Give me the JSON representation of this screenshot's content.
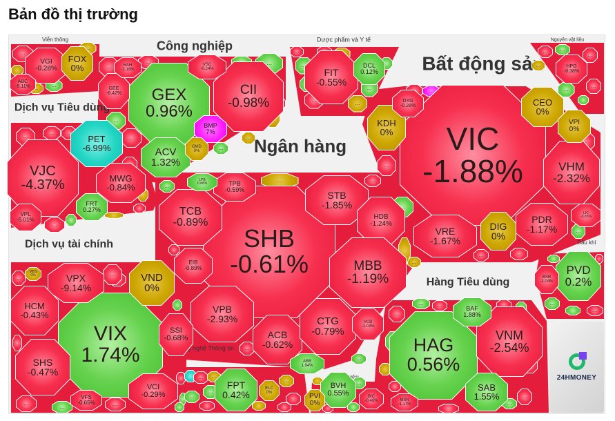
{
  "title": "Bản đồ thị trường",
  "more_label": "...",
  "logo_text": "24HMONEY",
  "colors": {
    "down": "#e6163a",
    "up": "#45bd2f",
    "flat": "#cda600",
    "ceiling": "#ff22ff",
    "floor": "#22d5c4"
  },
  "sectors": [
    {
      "name": "Viễn thông",
      "tiles": [
        {
          "ticker": "VGI",
          "change": "-0.28%",
          "color": "red"
        },
        {
          "ticker": "FOX",
          "change": "0%",
          "color": "yellow"
        },
        {
          "ticker": "ABC",
          "change": "-5.11%",
          "color": "red"
        }
      ]
    },
    {
      "name": "Công nghiệp",
      "tiles": [
        {
          "ticker": "GEX",
          "change": "0.96%",
          "color": "green"
        },
        {
          "ticker": "CII",
          "change": "-0.98%",
          "color": "red"
        },
        {
          "ticker": "ACV",
          "change": "1.32%",
          "color": "green"
        },
        {
          "ticker": "BMP",
          "change": "7%",
          "color": "magenta"
        },
        {
          "ticker": "GMD",
          "change": "0%",
          "color": "yellow"
        },
        {
          "ticker": "GEE",
          "change": "-6.42%",
          "color": "red"
        },
        {
          "ticker": "HAH",
          "change": "-1.18%",
          "color": "red"
        },
        {
          "ticker": "VSC",
          "change": "-0.24%",
          "color": "red"
        }
      ]
    },
    {
      "name": "Dược phẩm và Y tế",
      "tiles": [
        {
          "ticker": "FIT",
          "change": "-0.55%",
          "color": "red"
        },
        {
          "ticker": "DCL",
          "change": "0.12%",
          "color": "green"
        }
      ]
    },
    {
      "name": "Bất động sản",
      "tiles": [
        {
          "ticker": "VIC",
          "change": "-1.88%",
          "color": "red"
        },
        {
          "ticker": "VHM",
          "change": "-2.32%",
          "color": "red"
        },
        {
          "ticker": "CEO",
          "change": "0%",
          "color": "yellow"
        },
        {
          "ticker": "VPI",
          "change": "0%",
          "color": "yellow"
        },
        {
          "ticker": "KDH",
          "change": "0%",
          "color": "yellow"
        },
        {
          "ticker": "DXG",
          "change": "-0.28%",
          "color": "red"
        },
        {
          "ticker": "VRE",
          "change": "-1.67%",
          "color": "red"
        },
        {
          "ticker": "DIG",
          "change": "0%",
          "color": "yellow"
        },
        {
          "ticker": "PDR",
          "change": "-1.17%",
          "color": "red"
        },
        {
          "ticker": "LIC",
          "change": "-3.85%",
          "color": "red"
        }
      ]
    },
    {
      "name": "Nguyên vật liệu",
      "tiles": [
        {
          "ticker": "HPG",
          "change": "-0.38%",
          "color": "red"
        }
      ]
    },
    {
      "name": "Dịch vụ Tiêu dùng",
      "tiles": [
        {
          "ticker": "VJC",
          "change": "-4.37%",
          "color": "red"
        },
        {
          "ticker": "PET",
          "change": "-6.99%",
          "color": "cyan"
        },
        {
          "ticker": "MWG",
          "change": "-0.84%",
          "color": "red"
        },
        {
          "ticker": "FRT",
          "change": "0.27%",
          "color": "green"
        },
        {
          "ticker": "VPL",
          "change": "-5.01%",
          "color": "red"
        }
      ]
    },
    {
      "name": "Ngân hàng",
      "tiles": [
        {
          "ticker": "SHB",
          "change": "-0.61%",
          "color": "red"
        },
        {
          "ticker": "TCB",
          "change": "-0.89%",
          "color": "red"
        },
        {
          "ticker": "TPB",
          "change": "-0.59%",
          "color": "red"
        },
        {
          "ticker": "LPB",
          "change": "0.88%",
          "color": "green"
        },
        {
          "ticker": "STB",
          "change": "-1.85%",
          "color": "red"
        },
        {
          "ticker": "HDB",
          "change": "-1.24%",
          "color": "red"
        },
        {
          "ticker": "MBB",
          "change": "-1.19%",
          "color": "red"
        },
        {
          "ticker": "EIB",
          "change": "-0.89%",
          "color": "red"
        },
        {
          "ticker": "VPB",
          "change": "-2.93%",
          "color": "red"
        },
        {
          "ticker": "ACB",
          "change": "-0.62%",
          "color": "red"
        },
        {
          "ticker": "CTG",
          "change": "-0.79%",
          "color": "red"
        },
        {
          "ticker": "VCB",
          "change": "-1.03%",
          "color": "red"
        },
        {
          "ticker": "ABB",
          "change": "1.94%",
          "color": "green"
        }
      ]
    },
    {
      "name": "Dịch vụ tài chính",
      "tiles": [
        {
          "ticker": "VIX",
          "change": "1.74%",
          "color": "green"
        },
        {
          "ticker": "VPX",
          "change": "-9.14%",
          "color": "red"
        },
        {
          "ticker": "HCM",
          "change": "-0.43%",
          "color": "red"
        },
        {
          "ticker": "VND",
          "change": "0%",
          "color": "yellow"
        },
        {
          "ticker": "SSI",
          "change": "-0.68%",
          "color": "red"
        },
        {
          "ticker": "SHS",
          "change": "-0.47%",
          "color": "red"
        },
        {
          "ticker": "VCI",
          "change": "-0.29%",
          "color": "red"
        },
        {
          "ticker": "VFS",
          "change": "-0.65%",
          "color": "red"
        },
        {
          "ticker": "MBS",
          "change": "0%",
          "color": "yellow"
        }
      ]
    },
    {
      "name": "Công nghệ Thông tin",
      "tiles": [
        {
          "ticker": "FPT",
          "change": "0.42%",
          "color": "green"
        },
        {
          "ticker": "ELC",
          "change": "0%",
          "color": "yellow"
        }
      ]
    },
    {
      "name": "Bảo hiểm",
      "tiles": [
        {
          "ticker": "BVH",
          "change": "0.55%",
          "color": "green"
        },
        {
          "ticker": "PVI",
          "change": "0%",
          "color": "yellow"
        },
        {
          "ticker": "BIC",
          "change": "-0.46%",
          "color": "red"
        }
      ]
    },
    {
      "name": "Hàng Tiêu dùng",
      "tiles": [
        {
          "ticker": "HAG",
          "change": "0.56%",
          "color": "green"
        },
        {
          "ticker": "VNM",
          "change": "-2.54%",
          "color": "red"
        },
        {
          "ticker": "BAF",
          "change": "1.88%",
          "color": "green"
        },
        {
          "ticker": "SAB",
          "change": "1.55%",
          "color": "green"
        },
        {
          "ticker": "MSN",
          "change": "-1.17%",
          "color": "red"
        }
      ]
    },
    {
      "name": "Dầu khí",
      "tiles": [
        {
          "ticker": "PVD",
          "change": "0.2%",
          "color": "green"
        },
        {
          "ticker": "BSR",
          "change": "-1.04%",
          "color": "red"
        }
      ]
    }
  ]
}
